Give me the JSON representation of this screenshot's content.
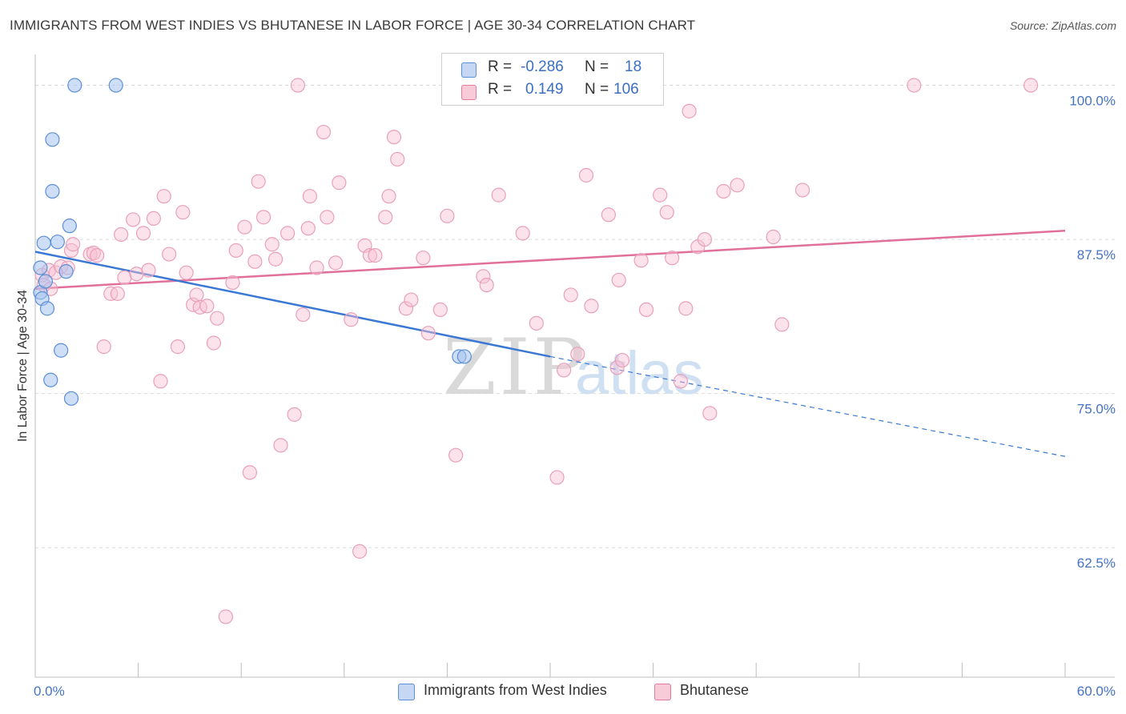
{
  "title": "IMMIGRANTS FROM WEST INDIES VS BHUTANESE IN LABOR FORCE | AGE 30-34 CORRELATION CHART",
  "source": "Source: ZipAtlas.com",
  "watermark": {
    "zip": "ZIP",
    "atlas": "atlas"
  },
  "legend": {
    "rows": [
      {
        "r_label": "R =",
        "r_value": "-0.286",
        "n_label": "N =",
        "n_value": "18"
      },
      {
        "r_label": "R =",
        "r_value": "0.149",
        "n_label": "N =",
        "n_value": "106"
      }
    ]
  },
  "bottom_legend": [
    "Immigrants from West Indies",
    "Bhutanese"
  ],
  "chart_data": {
    "type": "scatter",
    "title": "IMMIGRANTS FROM WEST INDIES VS BHUTANESE IN LABOR FORCE | AGE 30-34 CORRELATION CHART",
    "xlabel": "",
    "ylabel": "In Labor Force | Age 30-34",
    "xlim": [
      0,
      60
    ],
    "ylim": [
      52,
      102.5
    ],
    "x_tick_labels": [
      "0.0%",
      "60.0%"
    ],
    "y_ticks": [
      62.5,
      75.0,
      87.5,
      100.0
    ],
    "y_tick_labels": [
      "62.5%",
      "75.0%",
      "87.5%",
      "100.0%"
    ],
    "grid": true,
    "legend_position": "top-center",
    "colors": {
      "west_indies": "#5b8fd6",
      "bhutanese": "#e8789c"
    },
    "series": [
      {
        "name": "Immigrants from West Indies",
        "color": "#5b8fd6",
        "points": [
          [
            0.3,
            85.2
          ],
          [
            0.3,
            83.2
          ],
          [
            0.4,
            82.7
          ],
          [
            0.5,
            87.2
          ],
          [
            0.6,
            84.1
          ],
          [
            0.7,
            81.9
          ],
          [
            0.9,
            76.1
          ],
          [
            1.0,
            95.6
          ],
          [
            1.0,
            91.4
          ],
          [
            1.3,
            87.3
          ],
          [
            1.5,
            78.5
          ],
          [
            1.8,
            84.9
          ],
          [
            2.0,
            88.6
          ],
          [
            2.1,
            74.6
          ],
          [
            2.3,
            100.0
          ],
          [
            4.7,
            100.0
          ],
          [
            24.7,
            78.0
          ],
          [
            25.0,
            78.0
          ]
        ],
        "trend": {
          "x0": 0,
          "y0": 86.5,
          "x1": 30,
          "y1": 78.0,
          "dash_x1": 60,
          "dash_y1": 69.9
        }
      },
      {
        "name": "Bhutanese",
        "color": "#e8789c",
        "points": [
          [
            0.4,
            84.6
          ],
          [
            0.5,
            83.8
          ],
          [
            0.8,
            85.0
          ],
          [
            0.9,
            83.5
          ],
          [
            1.2,
            84.8
          ],
          [
            1.5,
            85.3
          ],
          [
            1.9,
            85.2
          ],
          [
            2.1,
            86.6
          ],
          [
            2.2,
            87.1
          ],
          [
            3.2,
            86.3
          ],
          [
            3.4,
            86.4
          ],
          [
            3.6,
            86.2
          ],
          [
            4.0,
            78.8
          ],
          [
            4.4,
            83.1
          ],
          [
            4.8,
            83.1
          ],
          [
            5.0,
            87.9
          ],
          [
            5.2,
            84.4
          ],
          [
            5.7,
            89.1
          ],
          [
            5.9,
            84.7
          ],
          [
            6.3,
            88.0
          ],
          [
            6.6,
            85.0
          ],
          [
            6.9,
            89.2
          ],
          [
            7.3,
            76.0
          ],
          [
            7.5,
            91.0
          ],
          [
            7.8,
            86.3
          ],
          [
            8.3,
            78.8
          ],
          [
            8.6,
            89.7
          ],
          [
            8.8,
            84.8
          ],
          [
            9.2,
            82.2
          ],
          [
            9.4,
            83.0
          ],
          [
            9.6,
            82.0
          ],
          [
            10.0,
            82.1
          ],
          [
            10.4,
            79.1
          ],
          [
            10.6,
            81.1
          ],
          [
            11.1,
            56.9
          ],
          [
            11.5,
            84.0
          ],
          [
            11.7,
            86.6
          ],
          [
            12.2,
            88.5
          ],
          [
            12.5,
            68.6
          ],
          [
            12.8,
            85.7
          ],
          [
            13.0,
            92.2
          ],
          [
            13.3,
            89.3
          ],
          [
            13.8,
            87.1
          ],
          [
            14.0,
            85.9
          ],
          [
            14.3,
            70.8
          ],
          [
            14.7,
            88.0
          ],
          [
            15.1,
            73.3
          ],
          [
            15.3,
            100.0
          ],
          [
            15.6,
            81.4
          ],
          [
            15.9,
            88.4
          ],
          [
            16.0,
            91.0
          ],
          [
            16.4,
            85.2
          ],
          [
            16.8,
            96.2
          ],
          [
            17.0,
            89.3
          ],
          [
            17.5,
            85.6
          ],
          [
            17.7,
            92.1
          ],
          [
            18.4,
            81.0
          ],
          [
            18.9,
            62.2
          ],
          [
            19.2,
            87.0
          ],
          [
            19.5,
            86.2
          ],
          [
            19.8,
            86.2
          ],
          [
            20.4,
            89.3
          ],
          [
            20.6,
            91.0
          ],
          [
            20.9,
            95.8
          ],
          [
            21.1,
            94.0
          ],
          [
            21.6,
            81.9
          ],
          [
            21.9,
            82.6
          ],
          [
            22.6,
            86.0
          ],
          [
            22.9,
            79.9
          ],
          [
            23.6,
            81.8
          ],
          [
            24.0,
            89.4
          ],
          [
            24.5,
            70.0
          ],
          [
            26.1,
            84.5
          ],
          [
            26.3,
            83.8
          ],
          [
            27.0,
            91.1
          ],
          [
            28.0,
            100.0
          ],
          [
            28.4,
            88.0
          ],
          [
            29.2,
            80.7
          ],
          [
            30.4,
            68.2
          ],
          [
            30.8,
            76.9
          ],
          [
            31.2,
            83.0
          ],
          [
            31.6,
            78.2
          ],
          [
            32.1,
            92.7
          ],
          [
            32.4,
            82.1
          ],
          [
            33.4,
            89.5
          ],
          [
            33.9,
            77.1
          ],
          [
            34.0,
            84.2
          ],
          [
            34.2,
            77.7
          ],
          [
            35.3,
            85.8
          ],
          [
            35.6,
            81.8
          ],
          [
            36.4,
            91.1
          ],
          [
            36.8,
            89.7
          ],
          [
            37.1,
            86.0
          ],
          [
            37.6,
            76.0
          ],
          [
            37.9,
            81.9
          ],
          [
            38.1,
            97.9
          ],
          [
            38.6,
            86.9
          ],
          [
            39.0,
            87.5
          ],
          [
            39.3,
            73.4
          ],
          [
            40.1,
            91.4
          ],
          [
            40.9,
            91.9
          ],
          [
            43.0,
            87.7
          ],
          [
            43.5,
            80.6
          ],
          [
            44.7,
            91.5
          ],
          [
            51.2,
            100.0
          ],
          [
            58.0,
            100.0
          ]
        ],
        "trend": {
          "x0": 0,
          "y0": 83.5,
          "x1": 60,
          "y1": 88.2
        }
      }
    ]
  }
}
